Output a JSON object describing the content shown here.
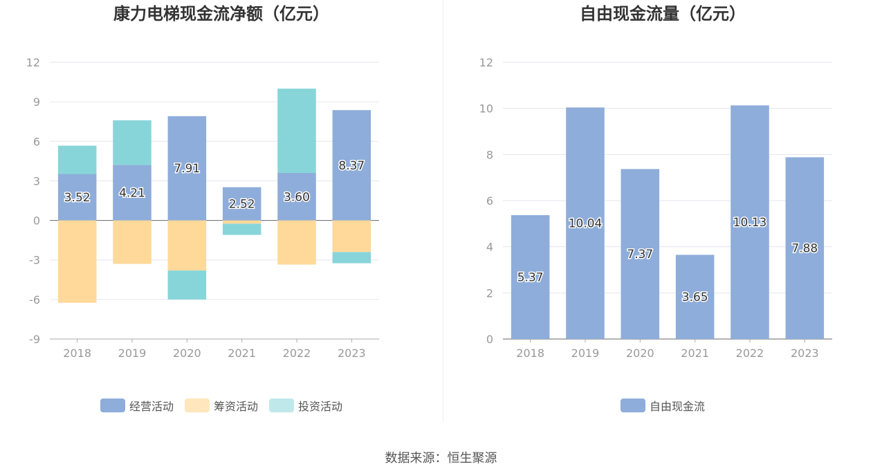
{
  "chart_data": [
    {
      "type": "bar",
      "stacked": true,
      "title": "康力电梯现金流净额（亿元）",
      "categories": [
        "2018",
        "2019",
        "2020",
        "2021",
        "2022",
        "2023"
      ],
      "ylim": [
        -9,
        12
      ],
      "yticks": [
        12,
        9,
        6,
        3,
        0,
        -3,
        -6,
        -9
      ],
      "grid": true,
      "legend_position": "bottom",
      "series": [
        {
          "name": "经营活动",
          "color": "#8eadda",
          "values": [
            3.52,
            4.21,
            7.91,
            2.52,
            3.6,
            8.37
          ],
          "labels": [
            "3.52",
            "4.21",
            "7.91",
            "2.52",
            "3.60",
            "8.37"
          ]
        },
        {
          "name": "筹资活动",
          "color": "#ffd99a",
          "values": [
            -6.25,
            -3.3,
            -3.8,
            -0.25,
            -3.35,
            -2.4
          ]
        },
        {
          "name": "投资活动",
          "color": "#88d5d9",
          "values": [
            2.15,
            3.39,
            -2.2,
            -0.85,
            6.4,
            -0.85
          ]
        }
      ]
    },
    {
      "type": "bar",
      "title": "自由现金流量（亿元）",
      "categories": [
        "2018",
        "2019",
        "2020",
        "2021",
        "2022",
        "2023"
      ],
      "ylim": [
        0,
        12
      ],
      "yticks": [
        12,
        10,
        8,
        6,
        4,
        2,
        0
      ],
      "grid": true,
      "legend_position": "bottom",
      "series": [
        {
          "name": "自由现金流",
          "color": "#8eadda",
          "values": [
            5.37,
            10.04,
            7.37,
            3.65,
            10.13,
            7.88
          ],
          "labels": [
            "5.37",
            "10.04",
            "7.37",
            "3.65",
            "10.13",
            "7.88"
          ]
        }
      ]
    }
  ],
  "legend_colors": {
    "left": [
      "#8eadda",
      "#ffe6bd",
      "#bfe8ea"
    ],
    "right": [
      "#8eadda"
    ]
  },
  "source_text": "数据来源：恒生聚源"
}
